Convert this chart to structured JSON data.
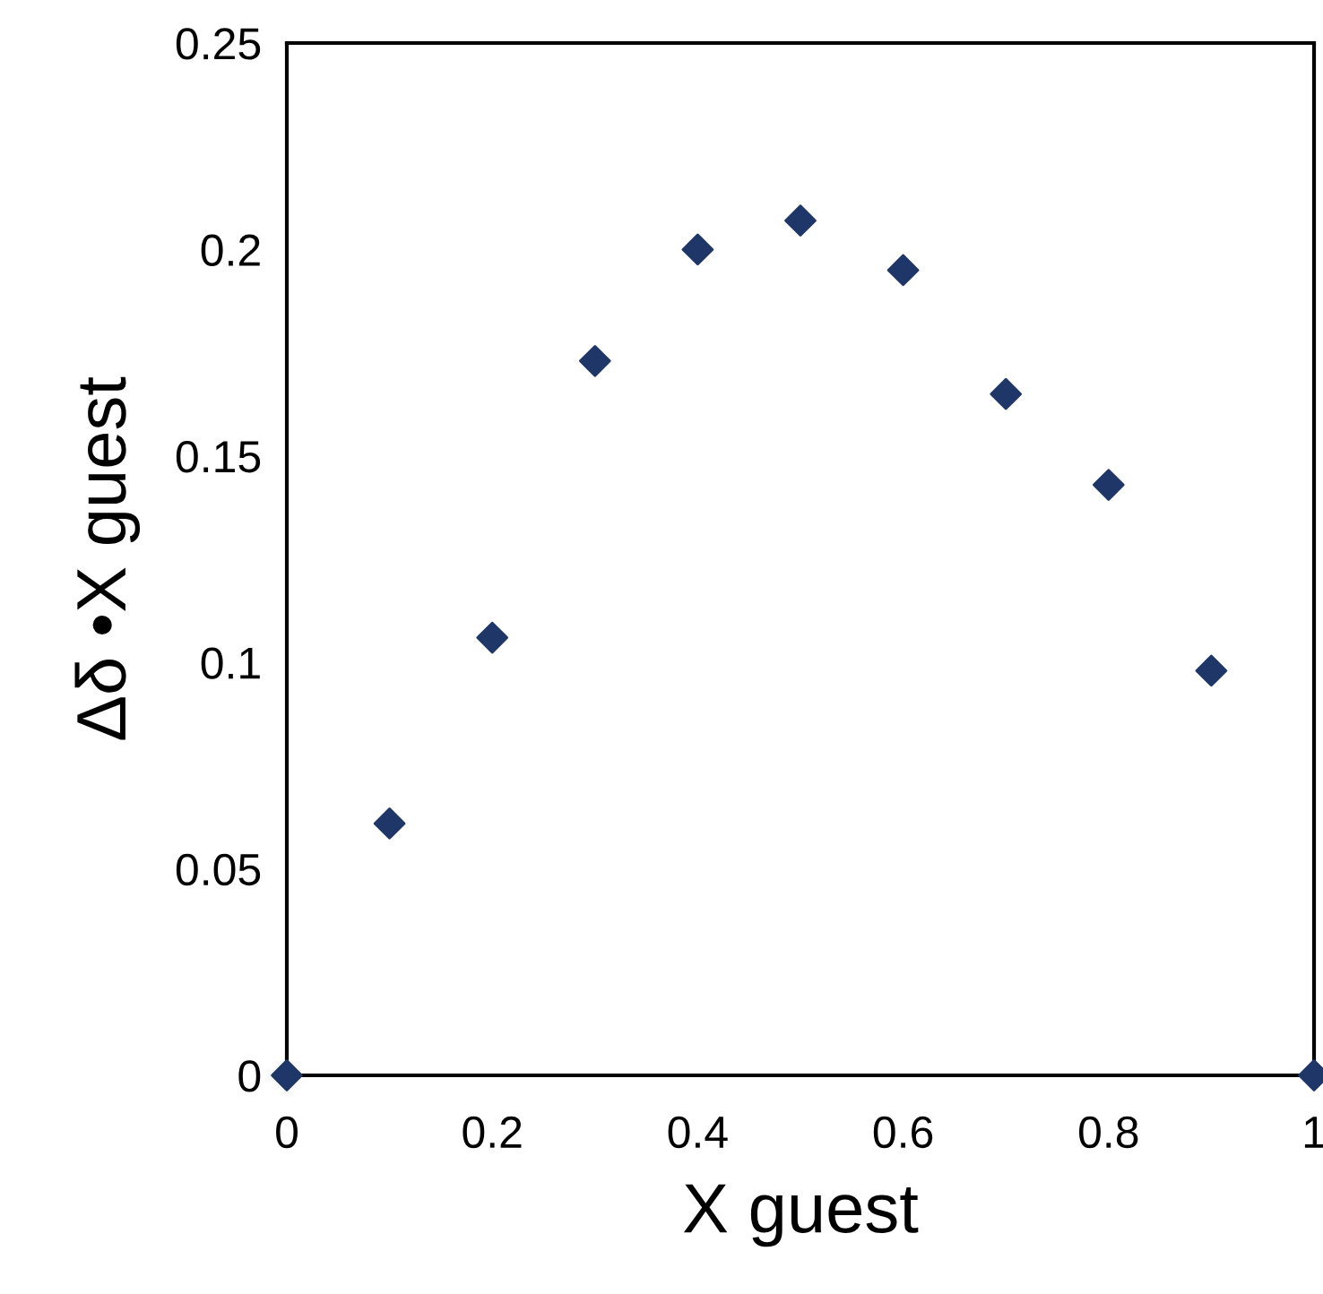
{
  "chart_data": {
    "type": "scatter",
    "xlabel": "X guest",
    "ylabel": "Δδ •X guest",
    "x": [
      0,
      0.1,
      0.2,
      0.3,
      0.4,
      0.5,
      0.6,
      0.7,
      0.8,
      0.9,
      1
    ],
    "series": [
      {
        "color": "#1f3668",
        "values": [
          0,
          0.061,
          0.106,
          0.173,
          0.2,
          0.207,
          0.195,
          0.165,
          0.143,
          0.098,
          0
        ]
      }
    ],
    "xlim": [
      0,
      1
    ],
    "xticks": [
      0,
      0.2,
      0.4,
      0.6,
      0.8,
      1
    ],
    "ylim": [
      0,
      0.25
    ],
    "yticks": [
      0,
      0.05,
      0.1,
      0.15,
      0.2,
      0.25
    ],
    "marker": "diamond",
    "grid": false,
    "legend": false
  }
}
